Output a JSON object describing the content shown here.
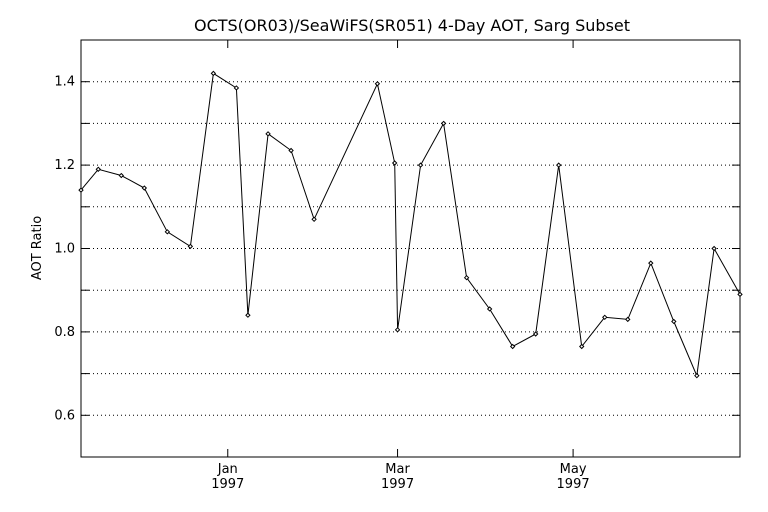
{
  "chart_data": {
    "type": "line",
    "title": "OCTS(OR03)/SeaWiFS(SR051) 4-Day AOT, Sarg Subset",
    "xlabel": "",
    "ylabel": "AOT Ratio",
    "ylim": [
      0.5,
      1.5
    ],
    "yticks": [
      0.6,
      0.8,
      1.0,
      1.2,
      1.4
    ],
    "ytick_labels": [
      "0.6",
      "0.8",
      "1.0",
      "1.2",
      "1.4"
    ],
    "grid_y": [
      0.6,
      0.7,
      0.8,
      0.9,
      1.0,
      1.1,
      1.2,
      1.3,
      1.4
    ],
    "grid": true,
    "xlim": [
      "1996-11-11",
      "1997-06-28"
    ],
    "xticks": [
      {
        "date": "1997-01-01",
        "month": "Jan",
        "year": "1997"
      },
      {
        "date": "1997-03-01",
        "month": "Mar",
        "year": "1997"
      },
      {
        "date": "1997-05-01",
        "month": "May",
        "year": "1997"
      }
    ],
    "x": [
      "1996-11-11",
      "1996-11-17",
      "1996-11-25",
      "1996-12-03",
      "1996-12-11",
      "1996-12-19",
      "1996-12-27",
      "1997-01-04",
      "1997-01-08",
      "1997-01-15",
      "1997-01-23",
      "1997-01-31",
      "1997-02-22",
      "1997-02-28",
      "1997-03-01",
      "1997-03-09",
      "1997-03-17",
      "1997-03-25",
      "1997-04-02",
      "1997-04-10",
      "1997-04-18",
      "1997-04-26",
      "1997-05-04",
      "1997-05-12",
      "1997-05-20",
      "1997-05-28",
      "1997-06-05",
      "1997-06-13",
      "1997-06-19",
      "1997-06-28"
    ],
    "series": [
      {
        "values": [
          1.14,
          1.19,
          1.175,
          1.145,
          1.04,
          1.005,
          1.42,
          1.385,
          0.84,
          1.275,
          1.235,
          1.07,
          1.395,
          1.205,
          0.805,
          1.2,
          1.3,
          0.93,
          0.855,
          0.765,
          0.795,
          1.2,
          0.765,
          0.835,
          0.83,
          0.965,
          0.825,
          0.695,
          1.0,
          0.89
        ]
      }
    ]
  }
}
